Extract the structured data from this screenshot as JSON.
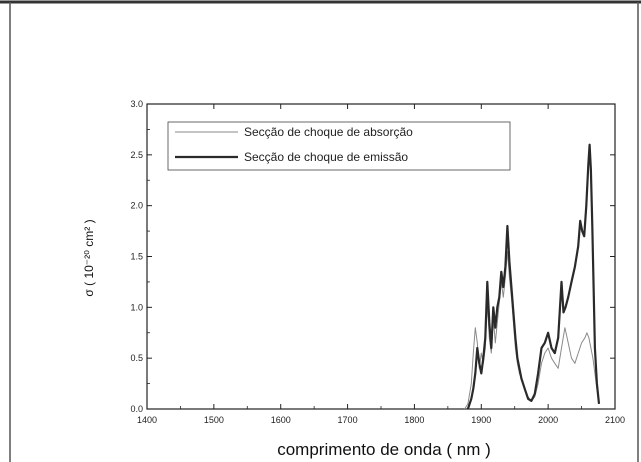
{
  "chart_data": {
    "type": "line",
    "title": "",
    "xlabel": "comprimento de onda ( nm )",
    "ylabel": "σ ( 10⁻²⁰ cm² )",
    "xlim": [
      1400,
      2100
    ],
    "ylim": [
      0.0,
      3.0
    ],
    "x_ticks": [
      "1400",
      "1500",
      "1600",
      "1700",
      "1800",
      "1900",
      "2000",
      "2100"
    ],
    "y_ticks": [
      "0.0",
      "0.5",
      "1.0",
      "1.5",
      "2.0",
      "2.5",
      "3.0"
    ],
    "legend_position": "top-left",
    "grid": false,
    "series": [
      {
        "name": "Secção de choque de absorção",
        "color": "#8a8a8a",
        "x": [
          1875,
          1880,
          1885,
          1888,
          1891,
          1894,
          1897,
          1900,
          1903,
          1906,
          1909,
          1912,
          1915,
          1918,
          1921,
          1924,
          1927,
          1930,
          1933,
          1936,
          1939,
          1942,
          1945,
          1948,
          1951,
          1954,
          1957,
          1960,
          1965,
          1970,
          1975,
          1980,
          1985,
          1990,
          1995,
          2000,
          2005,
          2010,
          2015,
          2020,
          2025,
          2030,
          2035,
          2040,
          2045,
          2050,
          2055,
          2058,
          2061,
          2064,
          2067,
          2070,
          2073,
          2076
        ],
        "y": [
          0.0,
          0.05,
          0.25,
          0.55,
          0.8,
          0.65,
          0.4,
          0.55,
          0.45,
          0.6,
          1.05,
          0.7,
          0.55,
          0.9,
          0.65,
          0.85,
          1.05,
          1.25,
          1.1,
          1.3,
          1.55,
          1.3,
          1.1,
          0.85,
          0.6,
          0.45,
          0.35,
          0.3,
          0.2,
          0.12,
          0.08,
          0.12,
          0.25,
          0.45,
          0.55,
          0.6,
          0.5,
          0.45,
          0.4,
          0.6,
          0.8,
          0.65,
          0.5,
          0.45,
          0.55,
          0.65,
          0.7,
          0.75,
          0.7,
          0.6,
          0.5,
          0.35,
          0.2,
          0.05
        ]
      },
      {
        "name": "Secção de choque de emissão",
        "color": "#2a2a2a",
        "x": [
          1880,
          1885,
          1888,
          1891,
          1894,
          1897,
          1900,
          1903,
          1906,
          1909,
          1912,
          1915,
          1918,
          1921,
          1924,
          1927,
          1930,
          1933,
          1936,
          1939,
          1942,
          1945,
          1948,
          1951,
          1954,
          1957,
          1960,
          1965,
          1970,
          1975,
          1980,
          1985,
          1990,
          1995,
          2000,
          2005,
          2010,
          2015,
          2020,
          2023,
          2026,
          2030,
          2035,
          2040,
          2045,
          2048,
          2051,
          2054,
          2057,
          2060,
          2062,
          2064,
          2066,
          2068,
          2070,
          2073,
          2076
        ],
        "y": [
          0.0,
          0.1,
          0.2,
          0.35,
          0.6,
          0.45,
          0.35,
          0.5,
          0.7,
          1.25,
          0.85,
          0.6,
          1.0,
          0.8,
          1.0,
          1.1,
          1.35,
          1.2,
          1.4,
          1.8,
          1.45,
          1.2,
          0.95,
          0.7,
          0.5,
          0.4,
          0.3,
          0.2,
          0.1,
          0.08,
          0.15,
          0.35,
          0.6,
          0.65,
          0.75,
          0.6,
          0.55,
          0.7,
          1.25,
          0.95,
          1.0,
          1.1,
          1.25,
          1.4,
          1.6,
          1.85,
          1.75,
          1.7,
          2.0,
          2.4,
          2.6,
          2.35,
          1.8,
          1.2,
          0.6,
          0.25,
          0.05
        ]
      }
    ]
  }
}
